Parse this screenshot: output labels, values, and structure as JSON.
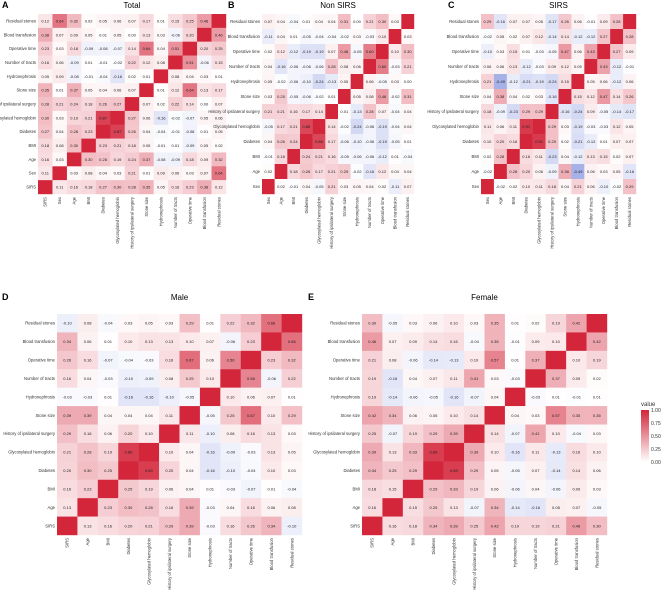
{
  "chart_data": [
    {
      "type": "heatmap",
      "panel": "A",
      "title": "Total",
      "rows": [
        "Residual stones",
        "Blood transfusion",
        "Operative time",
        "Number of tracts",
        "Hydronephrosis",
        "Stone size",
        "History of ipsilateral surgery",
        "Glycosylated hemoglobin",
        "Diabetes",
        "BMI",
        "Age",
        "Sex",
        "SIRS"
      ],
      "cols": [
        "SIRS",
        "Sex",
        "Age",
        "BMI",
        "Diabetes",
        "Glycosylated hemoglobin",
        "History of ipsilateral surgery",
        "Stone size",
        "Hydronephrosis",
        "Number of tracts",
        "Operative time",
        "Blood transfusion",
        "Residual stones"
      ],
      "values": [
        [
          0.12,
          0.64,
          0.32,
          0.02,
          0.05,
          0.06,
          0.07,
          0.17,
          0.01,
          0.15,
          0.25,
          0.46,
          1
        ],
        [
          0.38,
          0.07,
          0.09,
          0.05,
          0.01,
          0.05,
          0.0,
          0.13,
          0.03,
          -0.06,
          0.2,
          1,
          0.46
        ],
        [
          0.23,
          0.03,
          0.18,
          -0.09,
          -0.08,
          -0.07,
          0.14,
          0.64,
          0.04,
          0.51,
          1,
          0.2,
          0.25
        ],
        [
          0.16,
          0.06,
          -0.09,
          0.01,
          -0.01,
          -0.02,
          0.22,
          0.12,
          0.08,
          1,
          0.51,
          -0.06,
          0.15
        ],
        [
          0.05,
          0.09,
          -0.08,
          -0.01,
          -0.04,
          -0.16,
          0.02,
          0.01,
          1,
          0.08,
          0.04,
          0.03,
          0.01
        ],
        [
          0.35,
          0.01,
          0.37,
          0.05,
          0.04,
          0.06,
          0.07,
          1,
          0.01,
          0.12,
          0.64,
          0.13,
          0.17
        ],
        [
          0.28,
          0.21,
          0.24,
          0.18,
          0.26,
          0.27,
          1,
          0.07,
          0.02,
          0.22,
          0.14,
          0.0,
          0.07
        ],
        [
          0.3,
          0.03,
          0.19,
          0.21,
          0.87,
          1,
          0.27,
          0.06,
          -0.16,
          -0.02,
          -0.07,
          0.05,
          0.06
        ],
        [
          0.27,
          0.04,
          0.28,
          0.23,
          1,
          0.87,
          0.26,
          0.04,
          -0.04,
          -0.01,
          -0.08,
          0.01,
          0.05
        ],
        [
          0.18,
          0.08,
          0.3,
          1,
          0.23,
          0.21,
          0.18,
          0.05,
          -0.01,
          0.01,
          -0.09,
          0.05,
          0.02
        ],
        [
          0.16,
          0.03,
          1,
          0.3,
          0.28,
          0.19,
          0.24,
          0.37,
          -0.08,
          -0.09,
          0.18,
          0.09,
          0.32
        ],
        [
          0.11,
          1,
          0.03,
          0.08,
          0.04,
          0.03,
          0.21,
          0.01,
          0.09,
          0.06,
          0.03,
          0.07,
          0.64
        ],
        [
          1,
          0.11,
          0.16,
          0.18,
          0.27,
          0.3,
          0.28,
          0.35,
          0.05,
          0.16,
          0.23,
          0.38,
          0.12
        ]
      ]
    },
    {
      "type": "heatmap",
      "panel": "B",
      "title": "Non SIRS",
      "rows": [
        "Residual stones",
        "Blood transfusion",
        "Operative time",
        "Number of tracts",
        "Hydronephrosis",
        "Stone size",
        "History of ipsilateral surgery",
        "Glycosylated hemoglobin",
        "Diabetes",
        "BMI",
        "Age",
        "Sex"
      ],
      "cols": [
        "Sex",
        "Age",
        "BMI",
        "Diabetes",
        "Glycosylated hemoglobin",
        "History of ipsilateral surgery",
        "Stone size",
        "Hydronephrosis",
        "Number of tracts",
        "Operative time",
        "Blood transfusion",
        "Residual stones"
      ],
      "values": [
        [
          0.07,
          0.04,
          -0.04,
          0.01,
          0.04,
          0.04,
          0.31,
          0.0,
          0.21,
          0.3,
          0.03,
          1
        ],
        [
          -0.11,
          0.04,
          0.01,
          -0.05,
          -0.04,
          -0.04,
          -0.02,
          0.03,
          -0.03,
          0.1,
          1,
          0.03
        ],
        [
          0.02,
          0.12,
          -0.12,
          -0.19,
          -0.19,
          0.07,
          0.46,
          -0.05,
          0.6,
          1,
          0.1,
          0.3
        ],
        [
          0.04,
          -0.16,
          -0.06,
          -0.06,
          -0.06,
          0.28,
          0.08,
          0.06,
          1,
          0.6,
          -0.03,
          0.21
        ],
        [
          0.05,
          -0.02,
          -0.06,
          -0.1,
          -0.24,
          -0.13,
          0.05,
          1,
          0.06,
          -0.05,
          0.03,
          0.0
        ],
        [
          0.03,
          0.25,
          -0.05,
          -0.06,
          -0.02,
          0.01,
          1,
          0.05,
          0.08,
          0.46,
          -0.02,
          0.31
        ],
        [
          0.21,
          0.21,
          0.16,
          0.17,
          0.14,
          1,
          0.01,
          -0.13,
          0.28,
          0.07,
          -0.04,
          0.04
        ],
        [
          -0.05,
          0.17,
          0.21,
          0.85,
          1,
          0.14,
          -0.02,
          -0.24,
          -0.06,
          -0.19,
          -0.04,
          0.04
        ],
        [
          0.04,
          0.26,
          0.24,
          1,
          0.85,
          0.17,
          -0.06,
          -0.1,
          -0.06,
          -0.19,
          -0.05,
          0.01
        ],
        [
          -0.01,
          0.18,
          1,
          0.24,
          0.21,
          0.16,
          -0.05,
          -0.06,
          -0.06,
          -0.12,
          0.01,
          -0.04
        ],
        [
          0.02,
          1,
          0.18,
          0.26,
          0.17,
          0.21,
          0.25,
          -0.02,
          -0.16,
          0.12,
          0.04,
          0.04
        ],
        [
          1,
          0.02,
          -0.01,
          0.04,
          -0.05,
          0.21,
          0.03,
          0.05,
          0.04,
          0.02,
          -0.11,
          0.07
        ]
      ]
    },
    {
      "type": "heatmap",
      "panel": "C",
      "title": "SIRS",
      "rows": [
        "Residual stones",
        "Blood transfusion",
        "Operative time",
        "Number of tracts",
        "Hydronephrosis",
        "Stone size",
        "History of ipsilateral surgery",
        "Glycosylated hemoglobin",
        "Diabetes",
        "BMI",
        "Age",
        "Sex"
      ],
      "cols": [
        "Sex",
        "Age",
        "BMI",
        "Diabetes",
        "Glycosylated hemoglobin",
        "History of ipsilateral surgery",
        "Stone size",
        "Hydronephrosis",
        "Number of tracts",
        "Operative time",
        "Blood transfusion",
        "Residual stones"
      ],
      "values": [
        [
          0.29,
          -0.16,
          0.07,
          0.07,
          0.05,
          -0.17,
          0.26,
          0.06,
          -0.01,
          0.09,
          0.28,
          1
        ],
        [
          -0.02,
          0.05,
          0.02,
          0.07,
          0.12,
          -0.14,
          0.14,
          -0.12,
          -0.12,
          0.27,
          1,
          0.28
        ],
        [
          -0.1,
          0.03,
          0.15,
          0.01,
          -0.03,
          -0.05,
          0.47,
          0.06,
          0.43,
          1,
          0.27,
          0.09
        ],
        [
          0.06,
          0.06,
          0.13,
          -0.12,
          -0.03,
          0.09,
          0.12,
          0.05,
          1,
          0.43,
          -0.12,
          -0.01
        ],
        [
          0.21,
          -0.49,
          -0.12,
          -0.21,
          -0.19,
          -0.24,
          0.15,
          1,
          0.05,
          0.06,
          -0.12,
          0.06
        ],
        [
          0.04,
          0.38,
          0.04,
          0.02,
          0.03,
          -0.16,
          1,
          0.15,
          0.12,
          0.47,
          0.14,
          0.26
        ],
        [
          0.18,
          -0.09,
          -0.23,
          0.29,
          0.29,
          1,
          -0.16,
          -0.24,
          0.09,
          -0.05,
          -0.14,
          -0.17
        ],
        [
          0.11,
          0.06,
          0.11,
          0.91,
          1,
          0.29,
          0.03,
          -0.19,
          -0.03,
          -0.03,
          0.12,
          0.05
        ],
        [
          0.1,
          0.2,
          0.16,
          1,
          0.91,
          0.29,
          0.02,
          -0.21,
          -0.12,
          0.01,
          0.07,
          0.07
        ],
        [
          0.02,
          0.28,
          1,
          0.16,
          0.11,
          -0.23,
          0.04,
          -0.12,
          0.13,
          0.15,
          0.02,
          0.07
        ],
        [
          -0.02,
          1,
          0.28,
          0.2,
          0.06,
          -0.09,
          0.38,
          -0.49,
          0.06,
          0.03,
          0.05,
          -0.16
        ],
        [
          1,
          -0.02,
          0.02,
          0.1,
          0.11,
          0.18,
          0.04,
          0.21,
          0.06,
          -0.1,
          -0.02,
          0.29
        ]
      ]
    },
    {
      "type": "heatmap",
      "panel": "D",
      "title": "Male",
      "rows": [
        "Residual stones",
        "Blood transfusion",
        "Operative time",
        "Number of tracts",
        "Hydronephrosis",
        "Stone size",
        "History of ipsilateral surgery",
        "Glycosylated hemoglobin",
        "Diabetes",
        "BMI",
        "Age",
        "SIRS"
      ],
      "cols": [
        "SIRS",
        "Age",
        "BMI",
        "Diabetes",
        "Glycosylated hemoglobin",
        "History of ipsilateral surgery",
        "Stone size",
        "Hydronephrosis",
        "Number of tracts",
        "Operative time",
        "Blood transfusion",
        "Residual stones"
      ],
      "values": [
        [
          -0.1,
          0.08,
          -0.04,
          0.03,
          0.05,
          0.03,
          0.29,
          0.01,
          0.22,
          0.32,
          0.66,
          1
        ],
        [
          0.34,
          0.06,
          0.01,
          0.1,
          0.13,
          0.13,
          0.1,
          0.07,
          -0.06,
          0.23,
          1,
          0.66
        ],
        [
          0.26,
          0.16,
          -0.07,
          -0.04,
          -0.03,
          0.16,
          0.67,
          0.06,
          0.56,
          1,
          0.23,
          0.32
        ],
        [
          0.16,
          0.04,
          -0.03,
          -0.1,
          -0.09,
          0.08,
          0.25,
          0.1,
          1,
          0.56,
          -0.06,
          0.22
        ],
        [
          -0.03,
          -0.03,
          0.01,
          -0.16,
          -0.16,
          -0.1,
          -0.05,
          1,
          0.1,
          0.06,
          0.07,
          0.01
        ],
        [
          0.39,
          0.39,
          0.04,
          0.04,
          0.04,
          0.11,
          1,
          -0.05,
          0.25,
          0.67,
          0.1,
          0.29
        ],
        [
          0.29,
          0.16,
          0.06,
          0.2,
          0.1,
          1,
          0.11,
          -0.1,
          0.08,
          0.16,
          0.13,
          0.03
        ],
        [
          0.21,
          0.28,
          0.19,
          0.89,
          1,
          0.1,
          0.04,
          -0.16,
          -0.09,
          -0.03,
          0.13,
          0.05
        ],
        [
          0.2,
          0.3,
          0.25,
          1,
          0.89,
          0.2,
          0.04,
          -0.16,
          -0.1,
          -0.04,
          0.1,
          0.03
        ],
        [
          0.16,
          0.23,
          1,
          0.25,
          0.19,
          0.06,
          0.04,
          0.01,
          -0.03,
          -0.07,
          0.01,
          -0.04
        ],
        [
          0.13,
          1,
          0.23,
          0.3,
          0.28,
          0.16,
          0.39,
          -0.03,
          0.04,
          0.16,
          0.06,
          0.08
        ],
        [
          1,
          0.13,
          0.16,
          0.2,
          0.21,
          0.29,
          0.39,
          -0.03,
          0.16,
          0.26,
          0.34,
          -0.1
        ]
      ]
    },
    {
      "type": "heatmap",
      "panel": "E",
      "title": "Female",
      "rows": [
        "Residual stones",
        "Blood transfusion",
        "Operative time",
        "Number of tracts",
        "Hydronephrosis",
        "Stone size",
        "History of ipsilateral surgery",
        "Glycosylated hemoglobin",
        "Diabetes",
        "BMI",
        "Age",
        "SIRS"
      ],
      "cols": [
        "SIRS",
        "Age",
        "BMI",
        "Diabetes",
        "Glycosylated hemoglobin",
        "History of ipsilateral surgery",
        "Stone size",
        "Hydronephrosis",
        "Number of tracts",
        "Operative time",
        "Blood transfusion",
        "Residual stones"
      ],
      "values": [
        [
          0.3,
          -0.05,
          0.03,
          0.06,
          0.1,
          0.03,
          0.35,
          0.01,
          0.02,
          0.19,
          0.42,
          1
        ],
        [
          0.46,
          0.07,
          0.09,
          0.14,
          0.16,
          -0.04,
          0.35,
          -0.01,
          0.09,
          0.1,
          1,
          0.42
        ],
        [
          0.21,
          0.08,
          -0.06,
          -0.14,
          -0.13,
          0.1,
          0.57,
          0.01,
          0.37,
          1,
          0.1,
          0.19
        ],
        [
          0.19,
          -0.16,
          0.04,
          0.07,
          0.11,
          0.41,
          0.03,
          -0.03,
          1,
          0.37,
          0.09,
          0.02
        ],
        [
          0.19,
          -0.14,
          -0.06,
          -0.05,
          -0.16,
          -0.07,
          0.04,
          1,
          -0.03,
          0.01,
          -0.01,
          0.01
        ],
        [
          0.42,
          0.34,
          0.06,
          0.05,
          0.1,
          0.14,
          1,
          0.04,
          0.03,
          0.57,
          0.35,
          0.35
        ],
        [
          0.25,
          -0.07,
          0.19,
          0.29,
          0.39,
          1,
          0.14,
          -0.07,
          0.41,
          0.1,
          -0.04,
          0.03
        ],
        [
          0.39,
          0.13,
          0.33,
          0.89,
          1,
          0.39,
          0.1,
          -0.16,
          0.11,
          -0.13,
          0.16,
          0.1
        ],
        [
          0.34,
          0.25,
          0.29,
          1,
          0.89,
          0.29,
          0.05,
          -0.05,
          0.07,
          -0.14,
          0.14,
          0.06
        ],
        [
          0.18,
          0.15,
          1,
          0.29,
          0.33,
          0.19,
          0.06,
          -0.06,
          0.04,
          -0.06,
          0.09,
          0.03
        ],
        [
          0.16,
          1,
          0.15,
          0.25,
          0.13,
          -0.07,
          0.34,
          -0.14,
          -0.16,
          0.08,
          0.07,
          -0.05
        ],
        [
          1,
          0.16,
          0.18,
          0.34,
          0.39,
          0.25,
          0.42,
          0.19,
          0.19,
          0.21,
          0.46,
          0.3
        ]
      ]
    }
  ],
  "legend": {
    "title": "value",
    "ticks": [
      "1.00",
      "0.75",
      "0.50",
      "0.25",
      "0.00"
    ],
    "high_color": "#d3263a",
    "mid_color": "#ffffff",
    "low_color": "#4a5fcf"
  }
}
